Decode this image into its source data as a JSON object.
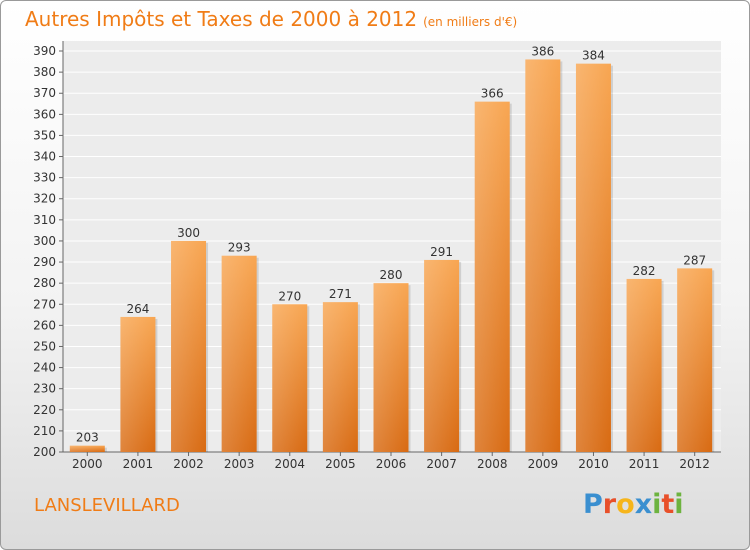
{
  "title": "Autres Impôts et Taxes de 2000 à 2012",
  "unit_note": "(en milliers d'€)",
  "location": "LANSLEVILLARD",
  "brand": {
    "letters": [
      "P",
      "r",
      "o",
      "x",
      "i",
      "t",
      "i"
    ],
    "colors": [
      "#3a8fd0",
      "#e8502a",
      "#f6b51b",
      "#3a8fd0",
      "#6db33f",
      "#e8502a",
      "#6db33f"
    ]
  },
  "chart_data": {
    "type": "bar",
    "categories": [
      "2000",
      "2001",
      "2002",
      "2003",
      "2004",
      "2005",
      "2006",
      "2007",
      "2008",
      "2009",
      "2010",
      "2011",
      "2012"
    ],
    "values": [
      203,
      264,
      300,
      293,
      270,
      271,
      280,
      291,
      366,
      386,
      384,
      282,
      287
    ],
    "ylim": [
      200,
      390
    ],
    "ytick_step": 10,
    "grid": true,
    "bar_color": "#f07c16"
  }
}
